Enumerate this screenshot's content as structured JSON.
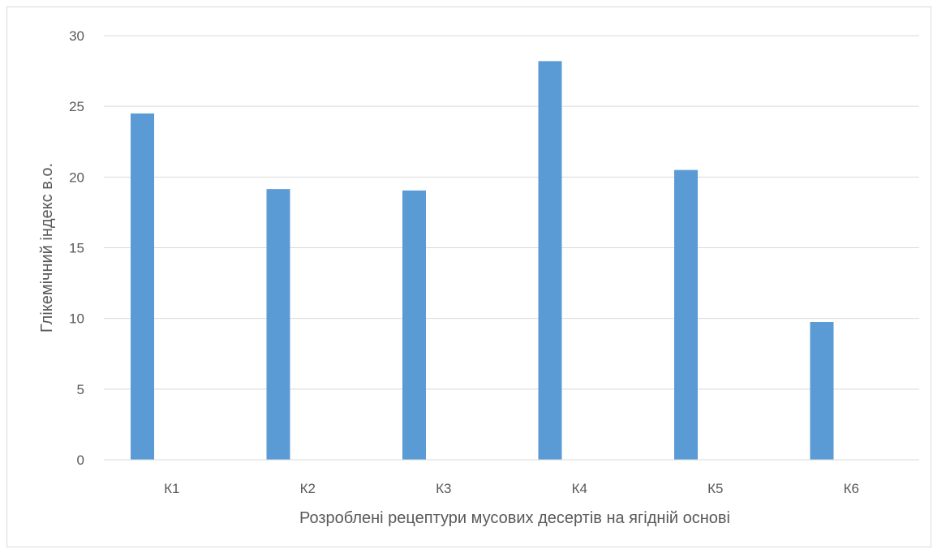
{
  "chart_data": {
    "type": "bar",
    "title": "",
    "xlabel": "Розроблені рецептури мусових десертів на ягідній основі",
    "ylabel": "Глікемічний індекс в.о.",
    "categories": [
      "К1",
      "К2",
      "К3",
      "К4",
      "К5",
      "К6"
    ],
    "series": [
      {
        "values": [
          24.5,
          19.15,
          19.05,
          28.2,
          20.5,
          9.75
        ],
        "color": "#5b9bd5"
      }
    ],
    "ylim": [
      0,
      30
    ],
    "yticks": [
      0,
      5,
      10,
      15,
      20,
      25,
      30
    ],
    "ytick_labels": [
      "0",
      "5",
      "10",
      "15",
      "20",
      "25",
      "30"
    ],
    "grid": true,
    "legend": "none",
    "colors": {
      "bar": "#5b9bd5",
      "grid": "#d9d9d9",
      "text": "#595959",
      "border": "#d9d9d9"
    }
  }
}
